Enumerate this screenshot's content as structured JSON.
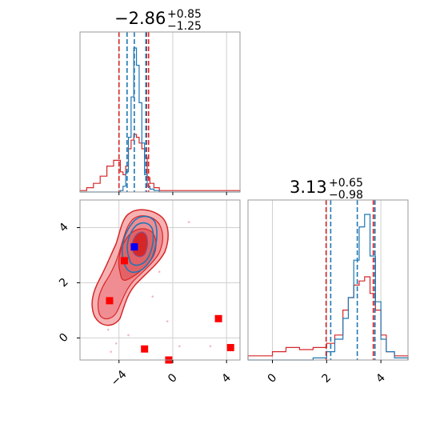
{
  "chart_data": {
    "type": "corner",
    "title_1": {
      "value": "−2.86",
      "plus": "+0.85",
      "minus": "−1.25"
    },
    "title_2": {
      "value": "3.13",
      "plus": "+0.65",
      "minus": "−0.98"
    },
    "x1_range": [
      -6.9,
      5.0
    ],
    "x2_range": [
      -0.9,
      5.0
    ],
    "y2_range": [
      -0.8,
      5.0
    ],
    "x1_ticks": [
      "−4",
      "0",
      "4"
    ],
    "x1_tick_values": [
      -4,
      0,
      4
    ],
    "x2_ticks": [
      "0",
      "2",
      "4"
    ],
    "x2_tick_values": [
      0,
      2,
      4
    ],
    "y2_ticks": [
      "0",
      "2",
      "4"
    ],
    "y2_tick_values": [
      0,
      2,
      4
    ],
    "colors": {
      "blue": "#1f77b4",
      "red": "#d62728",
      "marker_blue": "#0000ff",
      "marker_red": "#ff0000"
    },
    "grid": true,
    "quantiles_blue_p1": [
      -3.4,
      -2.86,
      -2.0
    ],
    "quantiles_red_p1": [
      -4.0,
      -1.95,
      -1.8
    ],
    "quantiles_blue_p2": [
      2.15,
      3.13,
      3.78
    ],
    "quantiles_red_p2": [
      1.98,
      3.72,
      3.78
    ],
    "hist_p1": {
      "bins": [
        -6.9,
        -6.4,
        -5.9,
        -5.4,
        -4.9,
        -4.4,
        -3.9,
        -3.7,
        -3.5,
        -3.3,
        -3.1,
        -2.9,
        -2.7,
        -2.5,
        -2.3,
        -2.1,
        -1.9,
        -1.7,
        -1.4,
        -1.0,
        0.0,
        5.0
      ],
      "blue": [
        0,
        0,
        0,
        0,
        0,
        0,
        1,
        4,
        14,
        38,
        66,
        100,
        88,
        62,
        34,
        12,
        4,
        2,
        1,
        0,
        0
      ],
      "red": [
        1,
        3,
        6,
        11,
        18,
        22,
        14,
        12,
        18,
        30,
        36,
        40,
        38,
        34,
        30,
        24,
        10,
        6,
        3,
        1,
        1
      ]
    },
    "hist_p2": {
      "bins": [
        -0.9,
        0.0,
        0.5,
        1.0,
        1.5,
        2.0,
        2.3,
        2.6,
        2.8,
        3.0,
        3.2,
        3.4,
        3.6,
        3.8,
        4.0,
        4.2,
        4.5,
        5.0
      ],
      "blue": [
        0,
        0,
        0,
        0,
        1,
        4,
        10,
        20,
        30,
        48,
        64,
        70,
        50,
        28,
        10,
        4,
        1
      ],
      "red": [
        2,
        4,
        6,
        5,
        6,
        8,
        12,
        24,
        30,
        36,
        38,
        40,
        32,
        24,
        12,
        4,
        2
      ]
    },
    "red_markers": [
      [
        -4.7,
        1.35
      ],
      [
        -3.6,
        2.8
      ],
      [
        -2.1,
        -0.4
      ],
      [
        -0.3,
        -0.8
      ],
      [
        3.4,
        0.7
      ],
      [
        4.3,
        -0.35
      ]
    ],
    "blue_marker": [
      -2.86,
      3.3
    ]
  }
}
